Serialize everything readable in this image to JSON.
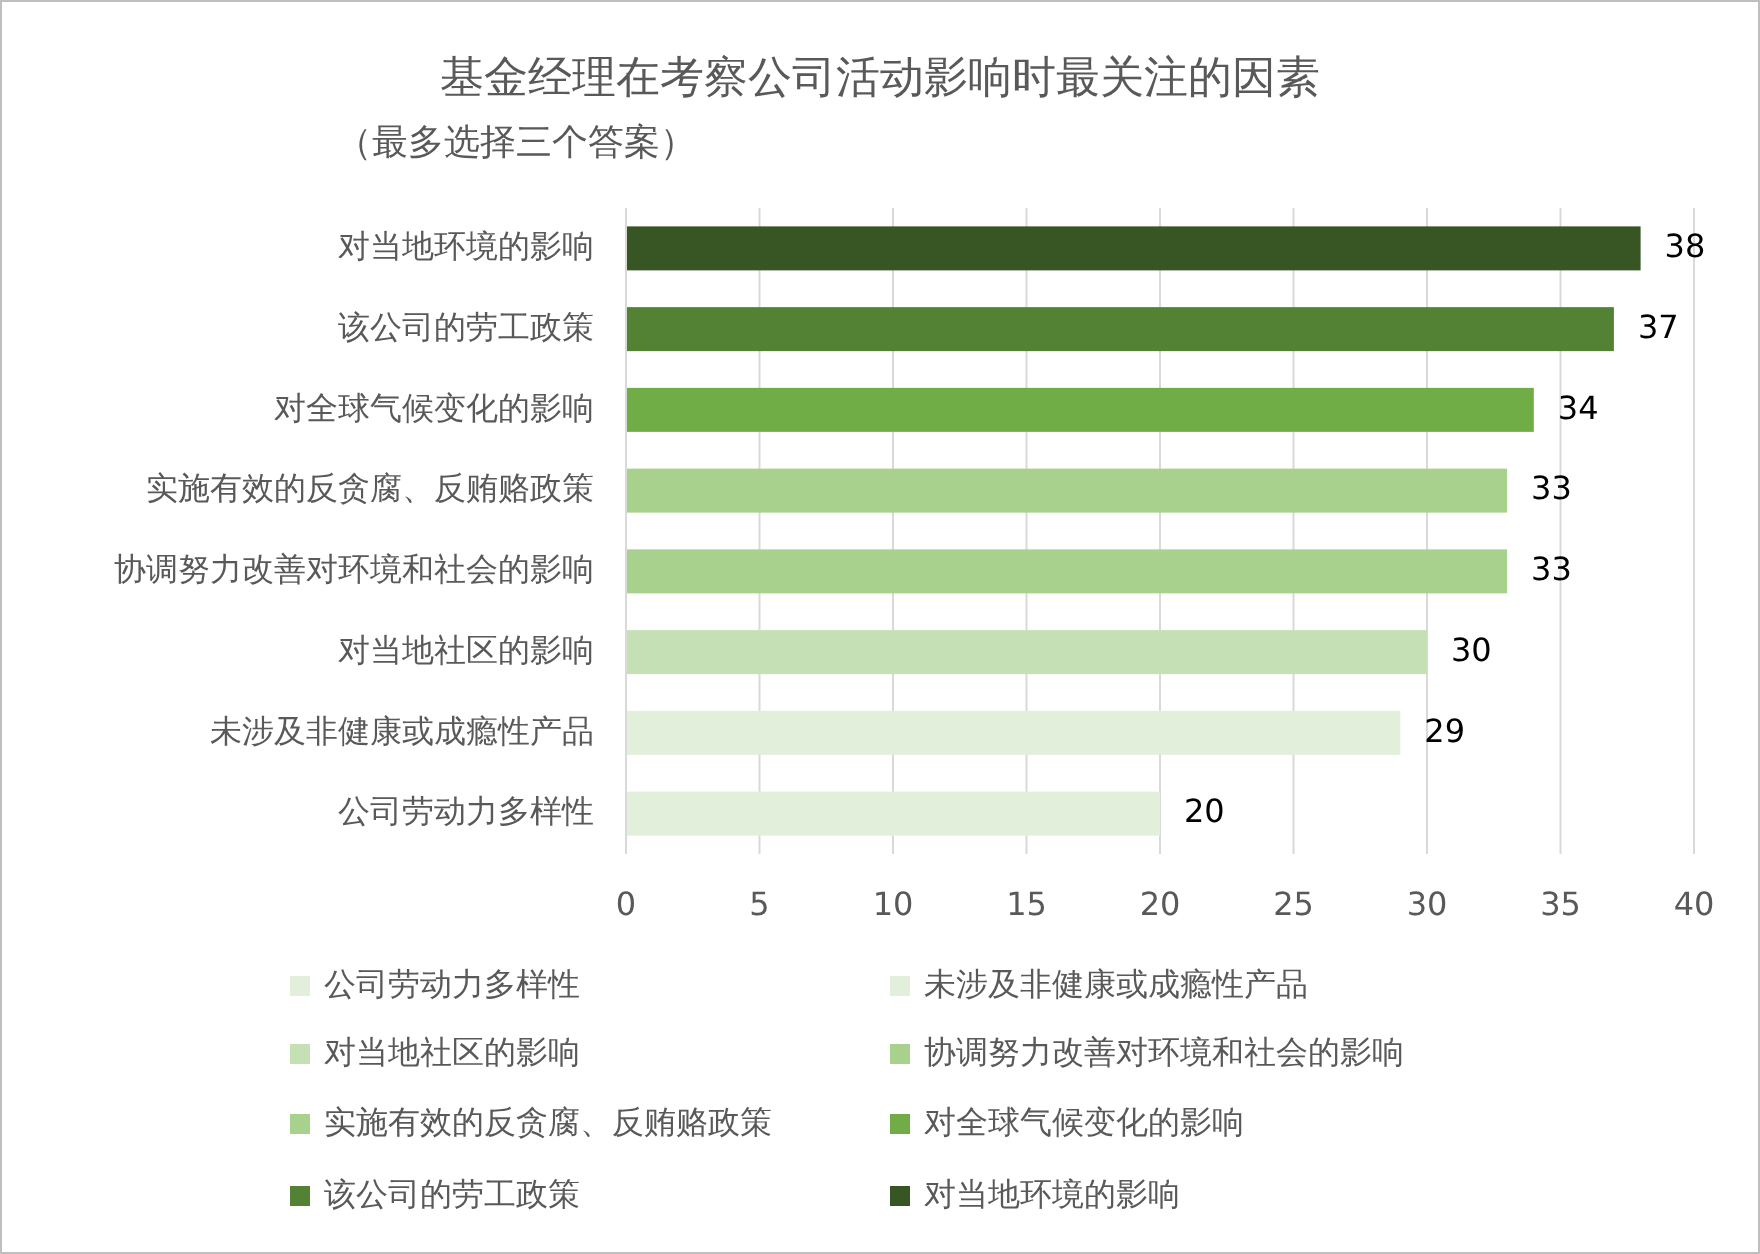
{
  "chart_data": {
    "type": "bar",
    "orientation": "horizontal",
    "title": "基金经理在考察公司活动影响时最关注的因素",
    "subtitle": "（最多选择三个答案）",
    "categories": [
      "对当地环境的影响",
      "该公司的劳工政策",
      "对全球气候变化的影响",
      "实施有效的反贪腐、反贿赂政策",
      "协调努力改善对环境和社会的影响",
      "对当地社区的影响",
      "未涉及非健康或成瘾性产品",
      "公司劳动力多样性"
    ],
    "series": [
      {
        "name": "公司劳动力多样性",
        "color": "#e2efda",
        "values": [
          null,
          null,
          null,
          null,
          null,
          null,
          null,
          20
        ]
      },
      {
        "name": "未涉及非健康或成瘾性产品",
        "color": "#e2efda",
        "values": [
          null,
          null,
          null,
          null,
          null,
          null,
          29,
          null
        ]
      },
      {
        "name": "对当地社区的影响",
        "color": "#c5e0b4",
        "values": [
          null,
          null,
          null,
          null,
          null,
          30,
          null,
          null
        ]
      },
      {
        "name": "协调努力改善对环境和社会的影响",
        "color": "#a9d18e",
        "values": [
          null,
          null,
          null,
          null,
          33,
          null,
          null,
          null
        ]
      },
      {
        "name": "实施有效的反贪腐、反贿赂政策",
        "color": "#a9d18e",
        "values": [
          null,
          null,
          null,
          33,
          null,
          null,
          null,
          null
        ]
      },
      {
        "name": "对全球气候变化的影响",
        "color": "#70ad47",
        "values": [
          null,
          null,
          34,
          null,
          null,
          null,
          null,
          null
        ]
      },
      {
        "name": "该公司的劳工政策",
        "color": "#548235",
        "values": [
          null,
          37,
          null,
          null,
          null,
          null,
          null,
          null
        ]
      },
      {
        "name": "对当地环境的影响",
        "color": "#375623",
        "values": [
          38,
          null,
          null,
          null,
          null,
          null,
          null,
          null
        ]
      }
    ],
    "xlim": [
      0,
      40
    ],
    "xticks": [
      0,
      5,
      10,
      15,
      20,
      25,
      30,
      35,
      40
    ],
    "grid": "x",
    "legend": "bottom",
    "data_labels": true
  }
}
